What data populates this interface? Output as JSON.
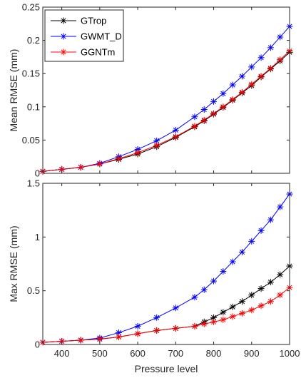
{
  "colors": {
    "GTrop": "#000000",
    "GWMT_D": "#0000ff",
    "GGNTm": "#ff0000"
  },
  "legend": [
    {
      "name": "GTrop",
      "color": "#000000"
    },
    {
      "name": "GWMT_D",
      "color": "#0000ff"
    },
    {
      "name": "GGNTm",
      "color": "#ff0000"
    }
  ],
  "chart_data": [
    {
      "type": "line",
      "ylabel": "Mean RMSE (mm)",
      "xlabel": "",
      "xlim": [
        350,
        1000
      ],
      "ylim": [
        0,
        0.25
      ],
      "xticks": [
        400,
        500,
        600,
        700,
        800,
        900,
        1000
      ],
      "yticks": [
        0,
        0.05,
        0.1,
        0.15,
        0.2,
        0.25
      ],
      "ytick_labels": [
        "0",
        "0.05",
        "0.1",
        "0.15",
        "0.2",
        "0.25"
      ],
      "show_xtick_labels": false,
      "legend_position": "top-left",
      "series": [
        {
          "name": "GTrop",
          "x": [
            350,
            400,
            450,
            500,
            550,
            600,
            650,
            700,
            750,
            775,
            800,
            825,
            850,
            875,
            900,
            925,
            950,
            975,
            1000
          ],
          "y": [
            0.003,
            0.006,
            0.009,
            0.014,
            0.021,
            0.029,
            0.04,
            0.054,
            0.07,
            0.079,
            0.089,
            0.099,
            0.11,
            0.121,
            0.132,
            0.145,
            0.157,
            0.169,
            0.182
          ]
        },
        {
          "name": "GWMT_D",
          "x": [
            350,
            400,
            450,
            500,
            550,
            600,
            650,
            700,
            750,
            775,
            800,
            825,
            850,
            875,
            900,
            925,
            950,
            975,
            1000
          ],
          "y": [
            0.003,
            0.006,
            0.009,
            0.015,
            0.025,
            0.036,
            0.049,
            0.065,
            0.085,
            0.096,
            0.108,
            0.12,
            0.133,
            0.146,
            0.16,
            0.174,
            0.189,
            0.205,
            0.221
          ]
        },
        {
          "name": "GGNTm",
          "x": [
            350,
            400,
            450,
            500,
            550,
            600,
            650,
            700,
            750,
            775,
            800,
            825,
            850,
            875,
            900,
            925,
            950,
            975,
            1000
          ],
          "y": [
            0.003,
            0.006,
            0.009,
            0.014,
            0.022,
            0.031,
            0.042,
            0.055,
            0.071,
            0.08,
            0.09,
            0.1,
            0.111,
            0.122,
            0.134,
            0.146,
            0.158,
            0.171,
            0.184
          ]
        }
      ]
    },
    {
      "type": "line",
      "ylabel": "Max RMSE (mm)",
      "xlabel": "Pressure level",
      "xlim": [
        350,
        1000
      ],
      "ylim": [
        0,
        1.5
      ],
      "xticks": [
        400,
        500,
        600,
        700,
        800,
        900,
        1000
      ],
      "xtick_labels": [
        "400",
        "500",
        "600",
        "700",
        "800",
        "900",
        "1000"
      ],
      "yticks": [
        0,
        0.5,
        1,
        1.5
      ],
      "ytick_labels": [
        "0",
        "0.5",
        "1",
        "1.5"
      ],
      "show_xtick_labels": true,
      "series": [
        {
          "name": "GTrop",
          "x": [
            350,
            400,
            450,
            500,
            550,
            600,
            650,
            700,
            750,
            775,
            800,
            825,
            850,
            875,
            900,
            925,
            950,
            975,
            1000
          ],
          "y": [
            0.02,
            0.03,
            0.04,
            0.05,
            0.07,
            0.1,
            0.13,
            0.15,
            0.17,
            0.21,
            0.25,
            0.3,
            0.35,
            0.4,
            0.46,
            0.52,
            0.58,
            0.65,
            0.73
          ]
        },
        {
          "name": "GWMT_D",
          "x": [
            350,
            400,
            450,
            500,
            550,
            600,
            650,
            700,
            750,
            775,
            800,
            825,
            850,
            875,
            900,
            925,
            950,
            975,
            1000
          ],
          "y": [
            0.02,
            0.03,
            0.04,
            0.06,
            0.11,
            0.17,
            0.25,
            0.34,
            0.44,
            0.51,
            0.59,
            0.68,
            0.77,
            0.86,
            0.96,
            1.06,
            1.16,
            1.28,
            1.4
          ]
        },
        {
          "name": "GGNTm",
          "x": [
            350,
            400,
            450,
            500,
            550,
            600,
            650,
            700,
            750,
            775,
            800,
            825,
            850,
            875,
            900,
            925,
            950,
            975,
            1000
          ],
          "y": [
            0.02,
            0.03,
            0.04,
            0.05,
            0.07,
            0.1,
            0.13,
            0.15,
            0.17,
            0.19,
            0.21,
            0.23,
            0.26,
            0.29,
            0.32,
            0.36,
            0.4,
            0.46,
            0.53
          ]
        }
      ]
    }
  ]
}
